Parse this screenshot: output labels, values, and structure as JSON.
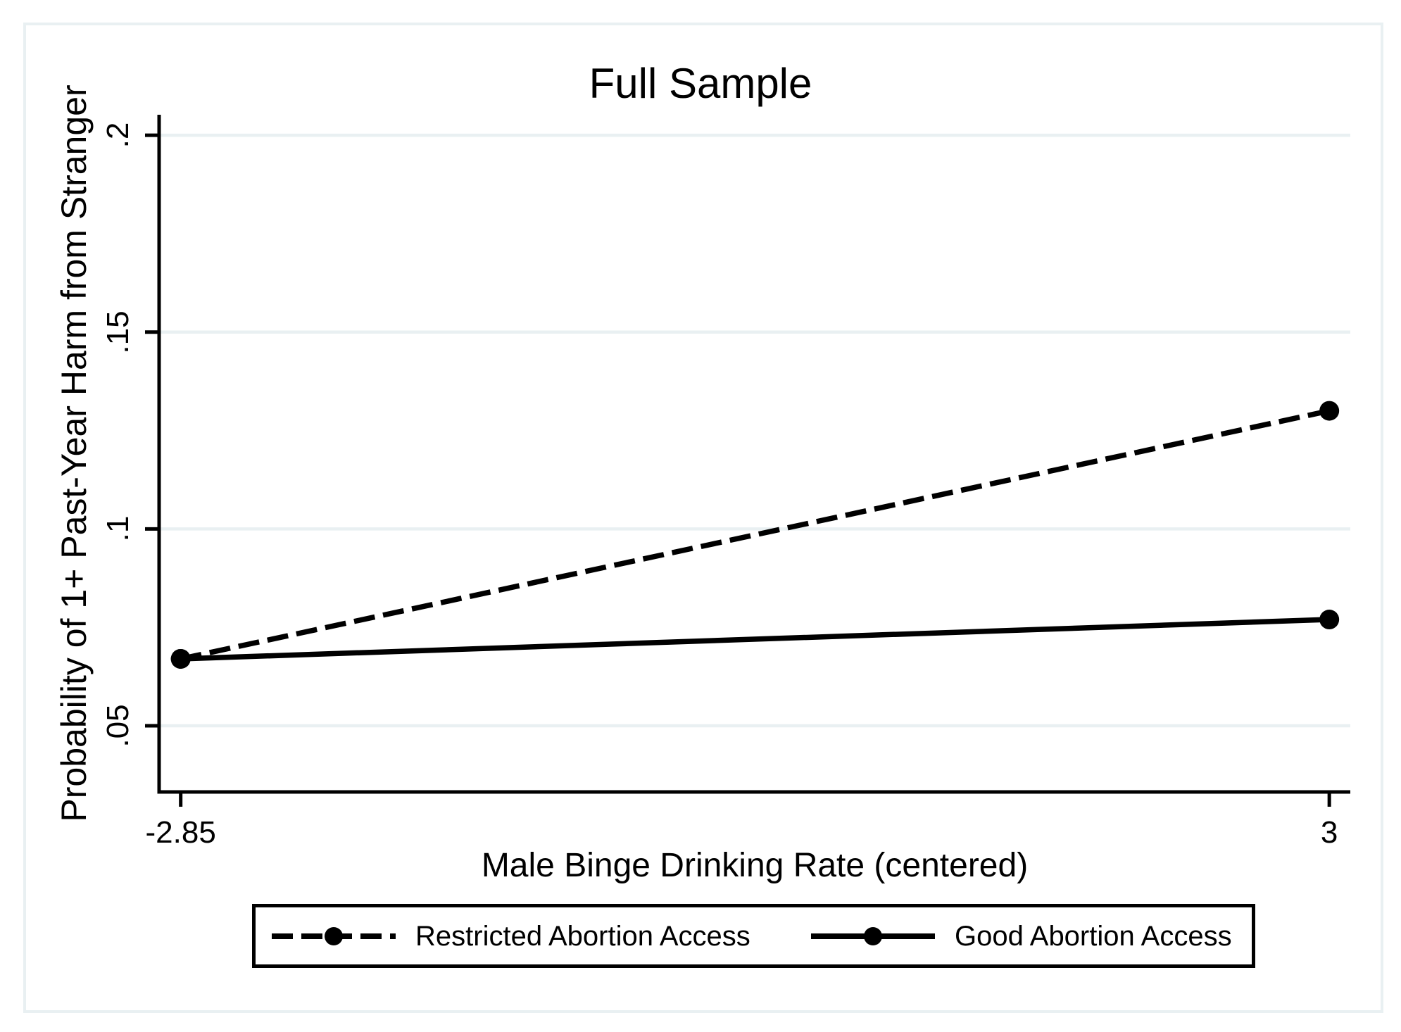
{
  "chart_data": {
    "type": "line",
    "title": "Full Sample",
    "xlabel": "Male Binge Drinking Rate (centered)",
    "ylabel": "Probability of 1+ Past-Year Harm from Stranger",
    "x": [
      -2.85,
      3
    ],
    "x_tick_labels": [
      "-2.85",
      "3"
    ],
    "y_ticks": [
      0.05,
      0.1,
      0.15,
      0.2
    ],
    "y_tick_labels": [
      ".05",
      ".1",
      ".15",
      ".2"
    ],
    "xlim": [
      -2.96,
      3.107
    ],
    "ylim": [
      0.0332,
      0.2052
    ],
    "grid": "horizontal-gridlines-on",
    "legend_position": "bottom",
    "series": [
      {
        "name": "Restricted Abortion Access",
        "values": [
          0.067,
          0.13
        ],
        "line_style": "dashed",
        "marker": "filled-circle",
        "color": "#000000"
      },
      {
        "name": "Good Abortion Access",
        "values": [
          0.067,
          0.077
        ],
        "line_style": "solid",
        "marker": "filled-circle",
        "color": "#000000"
      }
    ]
  },
  "colors": {
    "background": "#ffffff",
    "frame_border": "#e9f0f2",
    "gridline": "#e9f0f2",
    "axis": "#000000",
    "series": "#000000"
  }
}
